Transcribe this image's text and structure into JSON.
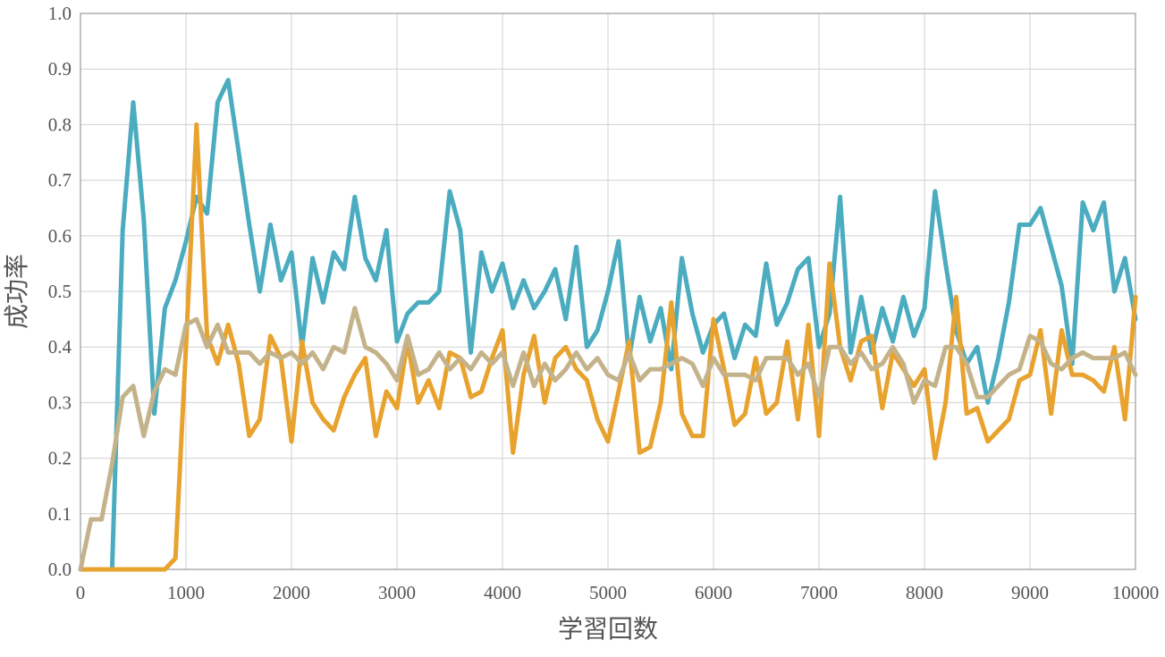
{
  "chart_data": {
    "type": "line",
    "title": "",
    "xlabel": "学習回数",
    "ylabel": "成功率",
    "xlim": [
      0,
      10000
    ],
    "ylim": [
      0,
      1.0
    ],
    "grid": true,
    "x_ticks": [
      "0",
      "1000",
      "2000",
      "3000",
      "4000",
      "5000",
      "6000",
      "7000",
      "8000",
      "9000",
      "10000"
    ],
    "y_ticks": [
      "0.0",
      "0.1",
      "0.2",
      "0.3",
      "0.4",
      "0.5",
      "0.6",
      "0.7",
      "0.8",
      "0.9",
      "1.0"
    ],
    "x": [
      0,
      100,
      200,
      300,
      400,
      500,
      600,
      700,
      800,
      900,
      1000,
      1100,
      1200,
      1300,
      1400,
      1500,
      1600,
      1700,
      1800,
      1900,
      2000,
      2100,
      2200,
      2300,
      2400,
      2500,
      2600,
      2700,
      2800,
      2900,
      3000,
      3100,
      3200,
      3300,
      3400,
      3500,
      3600,
      3700,
      3800,
      3900,
      4000,
      4100,
      4200,
      4300,
      4400,
      4500,
      4600,
      4700,
      4800,
      4900,
      5000,
      5100,
      5200,
      5300,
      5400,
      5500,
      5600,
      5700,
      5800,
      5900,
      6000,
      6100,
      6200,
      6300,
      6400,
      6500,
      6600,
      6700,
      6800,
      6900,
      7000,
      7100,
      7200,
      7300,
      7400,
      7500,
      7600,
      7700,
      7800,
      7900,
      8000,
      8100,
      8200,
      8300,
      8400,
      8500,
      8600,
      8700,
      8800,
      8900,
      9000,
      9100,
      9200,
      9300,
      9400,
      9500,
      9600,
      9700,
      9800,
      9900,
      10000
    ],
    "series": [
      {
        "color": "#4bacc0",
        "values": [
          0,
          0,
          0,
          0,
          0.61,
          0.84,
          0.63,
          0.28,
          0.47,
          0.52,
          0.59,
          0.67,
          0.64,
          0.84,
          0.88,
          0.75,
          0.62,
          0.5,
          0.62,
          0.52,
          0.57,
          0.4,
          0.56,
          0.48,
          0.57,
          0.54,
          0.67,
          0.56,
          0.52,
          0.61,
          0.41,
          0.46,
          0.48,
          0.48,
          0.5,
          0.68,
          0.61,
          0.39,
          0.57,
          0.5,
          0.55,
          0.47,
          0.52,
          0.47,
          0.5,
          0.54,
          0.45,
          0.58,
          0.4,
          0.43,
          0.5,
          0.59,
          0.38,
          0.49,
          0.41,
          0.47,
          0.36,
          0.56,
          0.46,
          0.39,
          0.44,
          0.46,
          0.38,
          0.44,
          0.42,
          0.55,
          0.44,
          0.48,
          0.54,
          0.56,
          0.4,
          0.46,
          0.67,
          0.39,
          0.49,
          0.39,
          0.47,
          0.41,
          0.49,
          0.42,
          0.47,
          0.68,
          0.55,
          0.43,
          0.37,
          0.4,
          0.3,
          0.38,
          0.48,
          0.62,
          0.62,
          0.65,
          0.58,
          0.51,
          0.37,
          0.66,
          0.61,
          0.66,
          0.5,
          0.56,
          0.45
        ]
      },
      {
        "color": "#e8a22e",
        "values": [
          0,
          0,
          0,
          0,
          0,
          0,
          0,
          0,
          0,
          0.02,
          0.4,
          0.8,
          0.42,
          0.37,
          0.44,
          0.37,
          0.24,
          0.27,
          0.42,
          0.38,
          0.23,
          0.41,
          0.3,
          0.27,
          0.25,
          0.31,
          0.35,
          0.38,
          0.24,
          0.32,
          0.29,
          0.41,
          0.3,
          0.34,
          0.29,
          0.39,
          0.38,
          0.31,
          0.32,
          0.38,
          0.43,
          0.21,
          0.35,
          0.42,
          0.3,
          0.38,
          0.4,
          0.36,
          0.34,
          0.27,
          0.23,
          0.32,
          0.41,
          0.21,
          0.22,
          0.3,
          0.48,
          0.28,
          0.24,
          0.24,
          0.45,
          0.36,
          0.26,
          0.28,
          0.38,
          0.28,
          0.3,
          0.41,
          0.27,
          0.44,
          0.24,
          0.55,
          0.4,
          0.34,
          0.41,
          0.42,
          0.29,
          0.39,
          0.36,
          0.33,
          0.36,
          0.2,
          0.3,
          0.49,
          0.28,
          0.29,
          0.23,
          0.25,
          0.27,
          0.34,
          0.35,
          0.43,
          0.28,
          0.43,
          0.35,
          0.35,
          0.34,
          0.32,
          0.4,
          0.27,
          0.49
        ]
      },
      {
        "color": "#c4b38a",
        "values": [
          0,
          0.09,
          0.09,
          0.19,
          0.31,
          0.33,
          0.24,
          0.32,
          0.36,
          0.35,
          0.44,
          0.45,
          0.4,
          0.44,
          0.39,
          0.39,
          0.39,
          0.37,
          0.39,
          0.38,
          0.39,
          0.37,
          0.39,
          0.36,
          0.4,
          0.39,
          0.47,
          0.4,
          0.39,
          0.37,
          0.34,
          0.42,
          0.35,
          0.36,
          0.39,
          0.36,
          0.38,
          0.36,
          0.39,
          0.37,
          0.39,
          0.33,
          0.39,
          0.33,
          0.37,
          0.34,
          0.36,
          0.39,
          0.36,
          0.38,
          0.35,
          0.34,
          0.39,
          0.34,
          0.36,
          0.36,
          0.37,
          0.38,
          0.37,
          0.33,
          0.38,
          0.35,
          0.35,
          0.35,
          0.34,
          0.38,
          0.38,
          0.38,
          0.35,
          0.37,
          0.31,
          0.4,
          0.4,
          0.37,
          0.39,
          0.36,
          0.37,
          0.4,
          0.37,
          0.3,
          0.34,
          0.33,
          0.4,
          0.4,
          0.37,
          0.31,
          0.31,
          0.33,
          0.35,
          0.36,
          0.42,
          0.41,
          0.37,
          0.36,
          0.38,
          0.39,
          0.38,
          0.38,
          0.38,
          0.39,
          0.35
        ]
      }
    ]
  }
}
